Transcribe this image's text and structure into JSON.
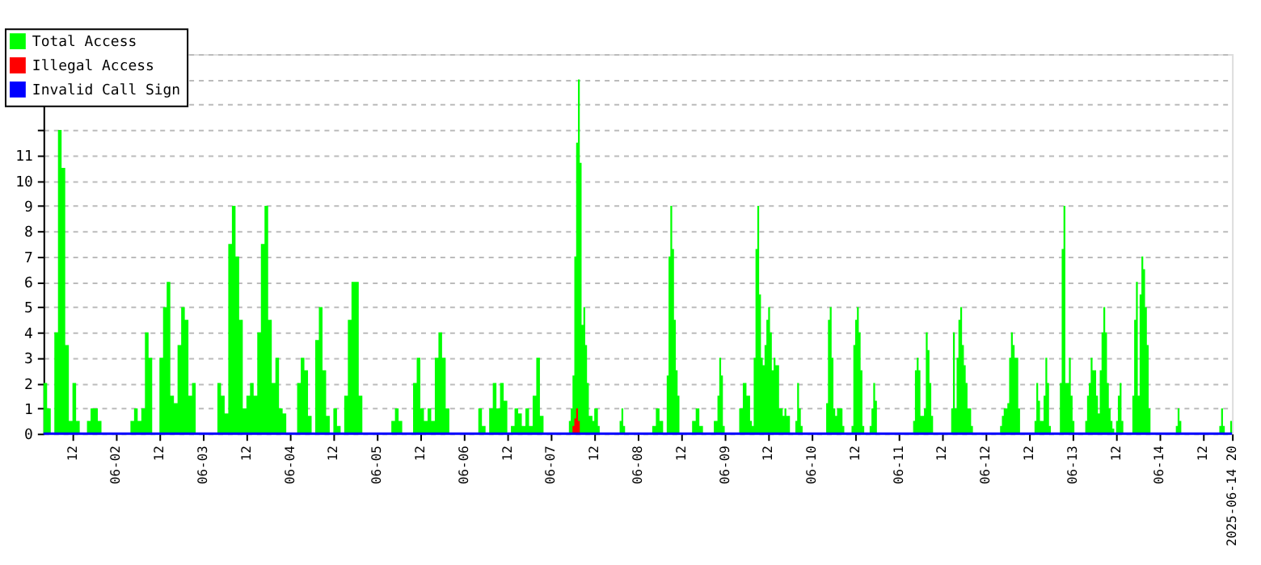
{
  "chart_data": {
    "type": "area",
    "xlim": [
      "2025-06-01T04:00",
      "2025-06-14T20:00"
    ],
    "ylim": [
      0,
      15
    ],
    "yticks": [
      0,
      1,
      2,
      3,
      4,
      5,
      6,
      7,
      8,
      9,
      10,
      11,
      {
        "value": 12,
        "label": null
      },
      {
        "value": 13,
        "label": null
      },
      {
        "value": 14,
        "label": null
      },
      {
        "value": 15,
        "label": null
      }
    ],
    "xticks": [
      {
        "value": "2025-06-01T12:00",
        "label": "12"
      },
      {
        "value": "2025-06-02T00:00",
        "label": "06-02"
      },
      {
        "value": "2025-06-02T12:00",
        "label": "12"
      },
      {
        "value": "2025-06-03T00:00",
        "label": "06-03"
      },
      {
        "value": "2025-06-03T12:00",
        "label": "12"
      },
      {
        "value": "2025-06-04T00:00",
        "label": "06-04"
      },
      {
        "value": "2025-06-04T12:00",
        "label": "12"
      },
      {
        "value": "2025-06-05T00:00",
        "label": "06-05"
      },
      {
        "value": "2025-06-05T12:00",
        "label": "12"
      },
      {
        "value": "2025-06-06T00:00",
        "label": "06-06"
      },
      {
        "value": "2025-06-06T12:00",
        "label": "12"
      },
      {
        "value": "2025-06-07T00:00",
        "label": "06-07"
      },
      {
        "value": "2025-06-07T12:00",
        "label": "12"
      },
      {
        "value": "2025-06-08T00:00",
        "label": "06-08"
      },
      {
        "value": "2025-06-08T12:00",
        "label": "12"
      },
      {
        "value": "2025-06-09T00:00",
        "label": "06-09"
      },
      {
        "value": "2025-06-09T12:00",
        "label": "12"
      },
      {
        "value": "2025-06-10T00:00",
        "label": "06-10"
      },
      {
        "value": "2025-06-10T12:00",
        "label": "12"
      },
      {
        "value": "2025-06-11T00:00",
        "label": "06-11"
      },
      {
        "value": "2025-06-11T12:00",
        "label": "12"
      },
      {
        "value": "2025-06-12T00:00",
        "label": "06-12"
      },
      {
        "value": "2025-06-12T12:00",
        "label": "12"
      },
      {
        "value": "2025-06-13T00:00",
        "label": "06-13"
      },
      {
        "value": "2025-06-13T12:00",
        "label": "12"
      },
      {
        "value": "2025-06-14T00:00",
        "label": "06-14"
      },
      {
        "value": "2025-06-14T12:00",
        "label": "12"
      },
      {
        "value": "2025-06-14T20:00",
        "label": "2025-06-14 20"
      }
    ],
    "grid": "y",
    "legend": "top left",
    "series": [
      {
        "name": "Total Access",
        "color": "#00ff00",
        "x": [
          "2025-06-01T04:00",
          "2025-06-01T05:00",
          "2025-06-01T06:00",
          "2025-06-01T07:00",
          "2025-06-01T08:00",
          "2025-06-01T09:00",
          "2025-06-01T10:00",
          "2025-06-01T11:00",
          "2025-06-01T12:00",
          "2025-06-01T13:00",
          "2025-06-01T14:00",
          "2025-06-01T16:00",
          "2025-06-01T17:00",
          "2025-06-01T18:00",
          "2025-06-01T19:00",
          "2025-06-01T20:00",
          "2025-06-02T04:00",
          "2025-06-02T05:00",
          "2025-06-02T06:00",
          "2025-06-02T07:00",
          "2025-06-02T08:00",
          "2025-06-02T09:00",
          "2025-06-02T10:00",
          "2025-06-02T12:00",
          "2025-06-02T13:00",
          "2025-06-02T14:00",
          "2025-06-02T15:00",
          "2025-06-02T16:00",
          "2025-06-02T17:00",
          "2025-06-02T18:00",
          "2025-06-02T19:00",
          "2025-06-02T20:00",
          "2025-06-02T21:00",
          "2025-06-02T22:00",
          "2025-06-03T04:00",
          "2025-06-03T05:00",
          "2025-06-03T06:00",
          "2025-06-03T07:00",
          "2025-06-03T08:00",
          "2025-06-03T09:00",
          "2025-06-03T10:00",
          "2025-06-03T11:00",
          "2025-06-03T12:00",
          "2025-06-03T13:00",
          "2025-06-03T14:00",
          "2025-06-03T15:00",
          "2025-06-03T16:00",
          "2025-06-03T17:00",
          "2025-06-03T18:00",
          "2025-06-03T19:00",
          "2025-06-03T20:00",
          "2025-06-03T21:00",
          "2025-06-03T22:00",
          "2025-06-03T23:00",
          "2025-06-04T02:00",
          "2025-06-04T03:00",
          "2025-06-04T04:00",
          "2025-06-04T05:00",
          "2025-06-04T06:00",
          "2025-06-04T07:00",
          "2025-06-04T08:00",
          "2025-06-04T09:00",
          "2025-06-04T10:00",
          "2025-06-04T11:00",
          "2025-06-04T12:00",
          "2025-06-04T13:00",
          "2025-06-04T14:00",
          "2025-06-04T15:00",
          "2025-06-04T16:00",
          "2025-06-04T17:00",
          "2025-06-04T18:00",
          "2025-06-04T19:00",
          "2025-06-04T20:00",
          "2025-06-05T04:00",
          "2025-06-05T05:00",
          "2025-06-05T06:00",
          "2025-06-05T07:00",
          "2025-06-05T10:00",
          "2025-06-05T11:00",
          "2025-06-05T12:00",
          "2025-06-05T13:00",
          "2025-06-05T14:00",
          "2025-06-05T15:00",
          "2025-06-05T16:00",
          "2025-06-05T17:00",
          "2025-06-05T18:00",
          "2025-06-05T19:00",
          "2025-06-05T20:00",
          "2025-06-06T04:00",
          "2025-06-06T05:00",
          "2025-06-06T06:00",
          "2025-06-06T07:00",
          "2025-06-06T08:00",
          "2025-06-06T09:00",
          "2025-06-06T10:00",
          "2025-06-06T11:00",
          "2025-06-06T12:00",
          "2025-06-06T13:00",
          "2025-06-06T14:00",
          "2025-06-06T15:00",
          "2025-06-06T16:00",
          "2025-06-06T17:00",
          "2025-06-06T18:00",
          "2025-06-06T19:00",
          "2025-06-06T20:00",
          "2025-06-06T21:00",
          "2025-06-06T22:00",
          "2025-06-07T05:00",
          "2025-06-07T05:30",
          "2025-06-07T06:00",
          "2025-06-07T06:30",
          "2025-06-07T07:00",
          "2025-06-07T07:30",
          "2025-06-07T08:00",
          "2025-06-07T08:30",
          "2025-06-07T09:00",
          "2025-06-07T09:30",
          "2025-06-07T10:00",
          "2025-06-07T10:30",
          "2025-06-07T11:30",
          "2025-06-07T12:00",
          "2025-06-07T13:00",
          "2025-06-07T13:30",
          "2025-06-07T19:00",
          "2025-06-07T19:30",
          "2025-06-07T20:00",
          "2025-06-07T20:30",
          "2025-06-08T04:00",
          "2025-06-08T05:00",
          "2025-06-08T06:00",
          "2025-06-08T07:00",
          "2025-06-08T08:00",
          "2025-06-08T08:30",
          "2025-06-08T09:00",
          "2025-06-08T09:30",
          "2025-06-08T10:00",
          "2025-06-08T10:30",
          "2025-06-08T11:00",
          "2025-06-08T11:30",
          "2025-06-08T15:00",
          "2025-06-08T16:00",
          "2025-06-08T17:00",
          "2025-06-08T18:00",
          "2025-06-08T21:00",
          "2025-06-08T22:00",
          "2025-06-08T22:30",
          "2025-06-08T23:00",
          "2025-06-08T23:30",
          "2025-06-09T00:00",
          "2025-06-09T04:00",
          "2025-06-09T05:00",
          "2025-06-09T06:00",
          "2025-06-09T07:00",
          "2025-06-09T07:30",
          "2025-06-09T08:00",
          "2025-06-09T08:30",
          "2025-06-09T09:00",
          "2025-06-09T09:30",
          "2025-06-09T10:00",
          "2025-06-09T10:30",
          "2025-06-09T11:00",
          "2025-06-09T11:30",
          "2025-06-09T12:00",
          "2025-06-09T12:30",
          "2025-06-09T13:00",
          "2025-06-09T13:30",
          "2025-06-09T14:00",
          "2025-06-09T15:00",
          "2025-06-09T16:00",
          "2025-06-09T16:30",
          "2025-06-09T17:00",
          "2025-06-09T18:00",
          "2025-06-09T19:30",
          "2025-06-09T20:00",
          "2025-06-09T20:30",
          "2025-06-09T21:00",
          "2025-06-09T21:30",
          "2025-06-10T04:00",
          "2025-06-10T04:30",
          "2025-06-10T05:00",
          "2025-06-10T05:30",
          "2025-06-10T06:00",
          "2025-06-10T06:30",
          "2025-06-10T07:00",
          "2025-06-10T07:30",
          "2025-06-10T08:30",
          "2025-06-10T09:00",
          "2025-06-10T11:00",
          "2025-06-10T11:30",
          "2025-06-10T12:00",
          "2025-06-10T12:30",
          "2025-06-10T13:00",
          "2025-06-10T13:30",
          "2025-06-10T14:00",
          "2025-06-10T14:30",
          "2025-06-10T16:00",
          "2025-06-10T16:30",
          "2025-06-10T17:00",
          "2025-06-10T17:30",
          "2025-06-10T18:00",
          "2025-06-11T04:00",
          "2025-06-11T04:30",
          "2025-06-11T05:00",
          "2025-06-11T05:30",
          "2025-06-11T06:00",
          "2025-06-11T07:00",
          "2025-06-11T07:30",
          "2025-06-11T08:00",
          "2025-06-11T08:30",
          "2025-06-11T09:00",
          "2025-06-11T09:30",
          "2025-06-11T14:30",
          "2025-06-11T15:00",
          "2025-06-11T15:30",
          "2025-06-11T16:00",
          "2025-06-11T16:30",
          "2025-06-11T17:00",
          "2025-06-11T17:30",
          "2025-06-11T18:00",
          "2025-06-11T18:30",
          "2025-06-11T19:00",
          "2025-06-11T20:00",
          "2025-06-11T20:30",
          "2025-06-12T04:00",
          "2025-06-12T04:30",
          "2025-06-12T05:00",
          "2025-06-12T06:00",
          "2025-06-12T06:30",
          "2025-06-12T07:00",
          "2025-06-12T07:30",
          "2025-06-12T08:00",
          "2025-06-12T09:00",
          "2025-06-12T09:30",
          "2025-06-12T13:30",
          "2025-06-12T14:00",
          "2025-06-12T14:30",
          "2025-06-12T15:00",
          "2025-06-12T15:30",
          "2025-06-12T16:00",
          "2025-06-12T16:30",
          "2025-06-12T17:00",
          "2025-06-12T17:30",
          "2025-06-12T18:00",
          "2025-06-12T20:30",
          "2025-06-12T21:00",
          "2025-06-12T21:30",
          "2025-06-12T22:00",
          "2025-06-12T22:30",
          "2025-06-12T23:00",
          "2025-06-12T23:30",
          "2025-06-13T00:00",
          "2025-06-13T00:30",
          "2025-06-13T03:30",
          "2025-06-13T04:00",
          "2025-06-13T04:30",
          "2025-06-13T05:00",
          "2025-06-13T05:30",
          "2025-06-13T06:30",
          "2025-06-13T07:00",
          "2025-06-13T07:30",
          "2025-06-13T08:00",
          "2025-06-13T08:30",
          "2025-06-13T09:00",
          "2025-06-13T09:30",
          "2025-06-13T10:00",
          "2025-06-13T10:30",
          "2025-06-13T11:00",
          "2025-06-13T11:30",
          "2025-06-13T12:00",
          "2025-06-13T12:30",
          "2025-06-13T13:00",
          "2025-06-13T13:30",
          "2025-06-13T14:00",
          "2025-06-13T16:30",
          "2025-06-13T17:00",
          "2025-06-13T17:30",
          "2025-06-13T18:00",
          "2025-06-13T18:30",
          "2025-06-13T19:00",
          "2025-06-13T19:30",
          "2025-06-13T20:00",
          "2025-06-13T20:30",
          "2025-06-13T21:00",
          "2025-06-13T21:30",
          "2025-06-14T04:30",
          "2025-06-14T05:00",
          "2025-06-14T05:30",
          "2025-06-14T06:00",
          "2025-06-14T16:30",
          "2025-06-14T17:00",
          "2025-06-14T17:30",
          "2025-06-14T18:00",
          "2025-06-14T19:30",
          "2025-06-14T20:00"
        ],
        "values": [
          2,
          1,
          0,
          4,
          12,
          10.5,
          3.5,
          0.5,
          2,
          0.5,
          0,
          0.5,
          1,
          1,
          0.5,
          0,
          0.5,
          1,
          0.5,
          1,
          4,
          3,
          0,
          3,
          5,
          6,
          1.5,
          1.2,
          3.5,
          5,
          4.5,
          1.5,
          2,
          0,
          2,
          1.5,
          0.8,
          7.5,
          9,
          7,
          4.5,
          1,
          1.5,
          2,
          1.5,
          4,
          7.5,
          9,
          4.5,
          2,
          3,
          1,
          0.8,
          0,
          2,
          3,
          2.5,
          0.7,
          0,
          3.7,
          5,
          2.5,
          0.7,
          0,
          1,
          0.3,
          0,
          1.5,
          4.5,
          6,
          6,
          1.5,
          0,
          0.5,
          1,
          0.5,
          0,
          2,
          3,
          1,
          0.5,
          1,
          0.5,
          3,
          4,
          3,
          1,
          0,
          1,
          0.3,
          0,
          1,
          2,
          1,
          2,
          1.3,
          0,
          0.3,
          1,
          0.8,
          0.3,
          1,
          0.3,
          1.5,
          3,
          0.7,
          0,
          0.5,
          1,
          2.3,
          7,
          11.5,
          14,
          10.7,
          4.3,
          5,
          3.5,
          2,
          0.7,
          0.5,
          1,
          0.3,
          0,
          0.5,
          1,
          0.3,
          0,
          0.3,
          1,
          0.5,
          0,
          2.3,
          7,
          9,
          7.3,
          4.5,
          2.5,
          1.5,
          0,
          0.5,
          1,
          0.3,
          0,
          0.5,
          1.5,
          3,
          2.3,
          0.3,
          0,
          1,
          2,
          1.5,
          0.5,
          0.3,
          3,
          7.3,
          9,
          5.5,
          3,
          2.7,
          3.5,
          4.5,
          5,
          4,
          2.5,
          3,
          2.7,
          1,
          0.7,
          1,
          0.7,
          0,
          0.5,
          2,
          1,
          0.3,
          0,
          1.2,
          4.5,
          5,
          3,
          1,
          0.7,
          1,
          1,
          0.3,
          0,
          0.3,
          3.5,
          4.5,
          5,
          4,
          2.5,
          0.3,
          0,
          0.3,
          1,
          2,
          1.3,
          0,
          0.5,
          2.5,
          3,
          2.5,
          0.7,
          1,
          4,
          3.3,
          2,
          0.7,
          0,
          1,
          4,
          1,
          3,
          4.5,
          5,
          3.5,
          2.7,
          2,
          1,
          0.3,
          0,
          0.3,
          0.7,
          1,
          1.2,
          3,
          4,
          3.5,
          3,
          1,
          0,
          0.5,
          2,
          1.3,
          0.5,
          0.5,
          1.5,
          3,
          2,
          0.3,
          0,
          2,
          7.3,
          9,
          2,
          2,
          3,
          1.5,
          0.5,
          0,
          0.5,
          1.5,
          2,
          3,
          2.5,
          1.5,
          0.8,
          2.5,
          4,
          5,
          4,
          2,
          1,
          0.5,
          0.2,
          0,
          0.5,
          1.5,
          2,
          0.5,
          0,
          1.5,
          4.5,
          6,
          1.5,
          5.5,
          7,
          6.5,
          5,
          3.5,
          1,
          0,
          0.3,
          1,
          0.5,
          0,
          0.3,
          1,
          0.3,
          0,
          0.5,
          1
        ]
      },
      {
        "name": "Illegal Access",
        "color": "#ff0000",
        "x": [
          "2025-06-07T06:00",
          "2025-06-07T06:30",
          "2025-06-07T07:00",
          "2025-06-07T07:30",
          "2025-06-07T08:00"
        ],
        "values": [
          0.3,
          0.6,
          1,
          0.5,
          0
        ]
      },
      {
        "name": "Invalid Call Sign",
        "color": "#0000ff",
        "type": "line",
        "x": [
          "2025-06-01T04:00",
          "2025-06-14T20:00"
        ],
        "values": [
          0,
          0
        ]
      }
    ]
  }
}
